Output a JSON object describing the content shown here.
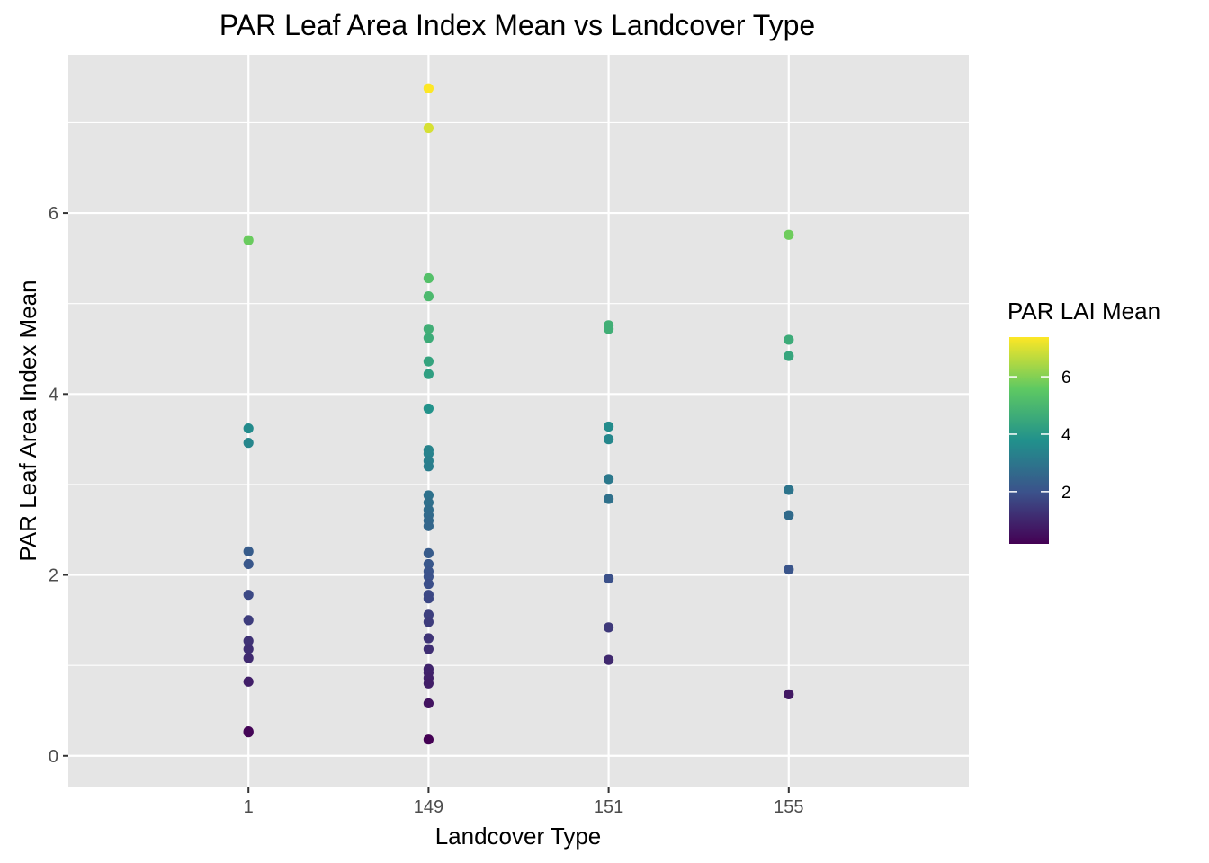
{
  "chart_data": {
    "type": "scatter",
    "title": "PAR Leaf Area Index Mean vs Landcover Type",
    "xlabel": "Landcover Type",
    "ylabel": "PAR Leaf Area Index Mean",
    "x_axis_type": "categorical",
    "categories": [
      "1",
      "149",
      "151",
      "155"
    ],
    "ylim": [
      -0.35,
      7.75
    ],
    "y_ticks": [
      0,
      2,
      4,
      6
    ],
    "y_tick_labels": [
      "0",
      "2",
      "4",
      "6"
    ],
    "grid": true,
    "color_scale": {
      "title": "PAR LAI Mean",
      "palette": "viridis",
      "range": [
        0.18,
        7.38
      ],
      "ticks": [
        2,
        4,
        6
      ],
      "tick_labels": [
        "2",
        "4",
        "6"
      ],
      "stops": [
        "#440154",
        "#3b528b",
        "#21918c",
        "#5ec962",
        "#fde725"
      ],
      "legend_position": "right"
    },
    "points": [
      {
        "x": "1",
        "y": 5.7
      },
      {
        "x": "1",
        "y": 3.62
      },
      {
        "x": "1",
        "y": 3.46
      },
      {
        "x": "1",
        "y": 2.26
      },
      {
        "x": "1",
        "y": 2.12
      },
      {
        "x": "1",
        "y": 1.78
      },
      {
        "x": "1",
        "y": 1.5
      },
      {
        "x": "1",
        "y": 1.27
      },
      {
        "x": "1",
        "y": 1.18
      },
      {
        "x": "1",
        "y": 1.08
      },
      {
        "x": "1",
        "y": 0.82
      },
      {
        "x": "1",
        "y": 0.27
      },
      {
        "x": "1",
        "y": 0.26
      },
      {
        "x": "149",
        "y": 7.38
      },
      {
        "x": "149",
        "y": 6.94
      },
      {
        "x": "149",
        "y": 5.28
      },
      {
        "x": "149",
        "y": 5.08
      },
      {
        "x": "149",
        "y": 4.72
      },
      {
        "x": "149",
        "y": 4.62
      },
      {
        "x": "149",
        "y": 4.36
      },
      {
        "x": "149",
        "y": 4.22
      },
      {
        "x": "149",
        "y": 3.84
      },
      {
        "x": "149",
        "y": 3.38
      },
      {
        "x": "149",
        "y": 3.34
      },
      {
        "x": "149",
        "y": 3.26
      },
      {
        "x": "149",
        "y": 3.2
      },
      {
        "x": "149",
        "y": 2.88
      },
      {
        "x": "149",
        "y": 2.8
      },
      {
        "x": "149",
        "y": 2.72
      },
      {
        "x": "149",
        "y": 2.66
      },
      {
        "x": "149",
        "y": 2.6
      },
      {
        "x": "149",
        "y": 2.54
      },
      {
        "x": "149",
        "y": 2.24
      },
      {
        "x": "149",
        "y": 2.12
      },
      {
        "x": "149",
        "y": 2.04
      },
      {
        "x": "149",
        "y": 1.98
      },
      {
        "x": "149",
        "y": 1.9
      },
      {
        "x": "149",
        "y": 1.78
      },
      {
        "x": "149",
        "y": 1.74
      },
      {
        "x": "149",
        "y": 1.56
      },
      {
        "x": "149",
        "y": 1.48
      },
      {
        "x": "149",
        "y": 1.3
      },
      {
        "x": "149",
        "y": 1.18
      },
      {
        "x": "149",
        "y": 0.96
      },
      {
        "x": "149",
        "y": 0.92
      },
      {
        "x": "149",
        "y": 0.86
      },
      {
        "x": "149",
        "y": 0.8
      },
      {
        "x": "149",
        "y": 0.58
      },
      {
        "x": "149",
        "y": 0.18
      },
      {
        "x": "151",
        "y": 4.76
      },
      {
        "x": "151",
        "y": 4.72
      },
      {
        "x": "151",
        "y": 3.64
      },
      {
        "x": "151",
        "y": 3.5
      },
      {
        "x": "151",
        "y": 3.06
      },
      {
        "x": "151",
        "y": 2.84
      },
      {
        "x": "151",
        "y": 1.96
      },
      {
        "x": "151",
        "y": 1.42
      },
      {
        "x": "151",
        "y": 1.06
      },
      {
        "x": "155",
        "y": 5.76
      },
      {
        "x": "155",
        "y": 4.6
      },
      {
        "x": "155",
        "y": 4.42
      },
      {
        "x": "155",
        "y": 2.94
      },
      {
        "x": "155",
        "y": 2.66
      },
      {
        "x": "155",
        "y": 2.06
      },
      {
        "x": "155",
        "y": 0.68
      }
    ]
  }
}
